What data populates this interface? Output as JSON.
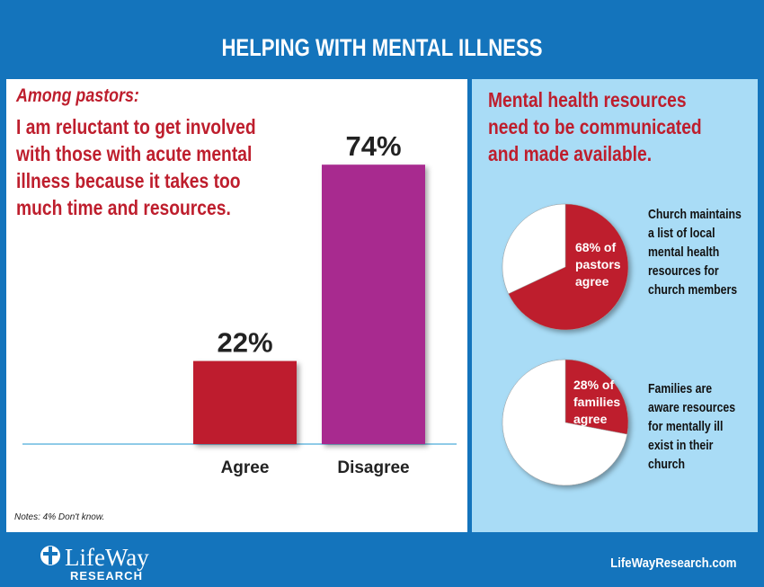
{
  "header": {
    "title": "HELPING WITH MENTAL ILLNESS"
  },
  "left_panel": {
    "subtitle": "Among pastors:",
    "statement": "I am reluctant to get involved\nwith those with acute mental\nillness because it takes too\nmuch time and resources.",
    "notes": "Notes: 4% Don't know."
  },
  "right_panel": {
    "heading": "Mental health resources\nneed to be communicated\nand made available.",
    "pies": [
      {
        "inner_label": "68% of\npastors\nagree",
        "caption": "Church maintains\na list of local\nmental health\nresources for\nchurch members"
      },
      {
        "inner_label": "28% of\nfamilies\nagree",
        "caption": "Families are\naware resources\nfor mentally ill\nexist in their\nchurch"
      }
    ]
  },
  "chart_data": [
    {
      "type": "bar",
      "categories": [
        "Agree",
        "Disagree"
      ],
      "values": [
        22,
        74
      ],
      "data_labels": [
        "22%",
        "74%"
      ],
      "colors": [
        "#be1e2d",
        "#a8298f"
      ],
      "ylim": [
        0,
        100
      ]
    },
    {
      "type": "pie",
      "values": [
        68,
        32
      ],
      "colors": [
        "#be1e2d",
        "#ffffff"
      ]
    },
    {
      "type": "pie",
      "values": [
        28,
        72
      ],
      "colors": [
        "#be1e2d",
        "#ffffff"
      ]
    }
  ],
  "footer": {
    "logo_text": "LifeWay",
    "logo_sub": "RESEARCH",
    "url": "LifeWayResearch.com"
  },
  "colors": {
    "background": "#1474bc",
    "accent_red": "#be1e2d",
    "purple": "#a8298f",
    "panel_blue": "#a9dcf6"
  }
}
